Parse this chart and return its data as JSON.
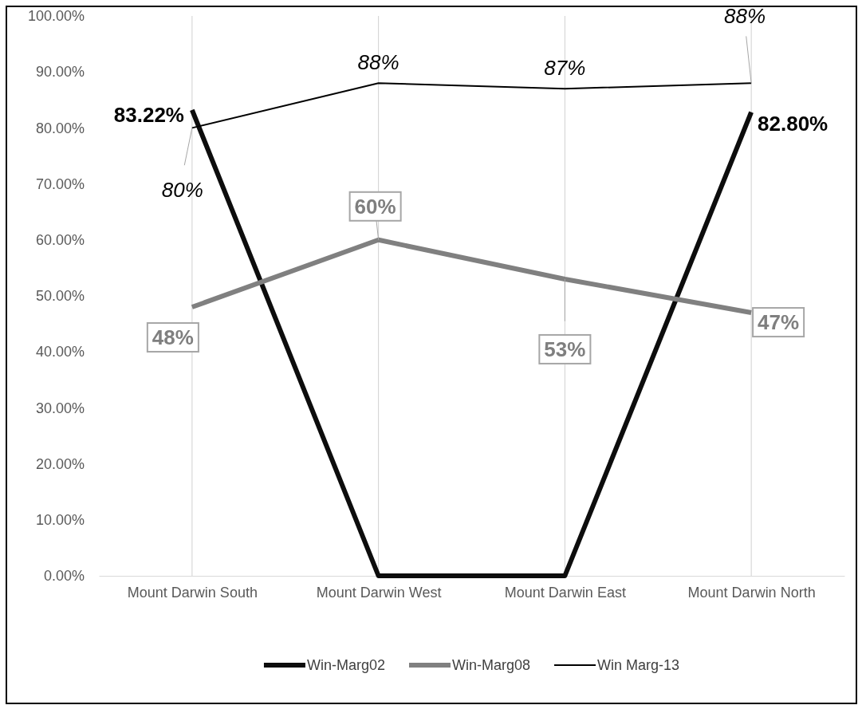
{
  "chart_data": {
    "type": "line",
    "categories": [
      "Mount Darwin South",
      "Mount Darwin West",
      "Mount Darwin East",
      "Mount Darwin North"
    ],
    "series": [
      {
        "name": "Win-Marg02",
        "color": "#0d0d0d",
        "values": [
          83.22,
          0,
          0,
          82.8
        ],
        "value_labels": [
          "83.22%",
          null,
          null,
          "82.80%"
        ]
      },
      {
        "name": "Win-Marg08",
        "color": "#808080",
        "values": [
          48,
          60,
          53,
          47
        ],
        "value_labels": [
          "48%",
          "60%",
          "53%",
          "47%"
        ]
      },
      {
        "name": "Win Marg-13",
        "color": "#000000",
        "values": [
          80,
          88,
          87,
          88
        ],
        "value_labels": [
          "80%",
          "88%",
          "87%",
          "88%"
        ]
      }
    ],
    "ylim": [
      0,
      100
    ],
    "yticks": [
      {
        "value": 0,
        "label": "0.00%"
      },
      {
        "value": 10,
        "label": "10.00%"
      },
      {
        "value": 20,
        "label": "20.00%"
      },
      {
        "value": 30,
        "label": "30.00%"
      },
      {
        "value": 40,
        "label": "40.00%"
      },
      {
        "value": 50,
        "label": "50.00%"
      },
      {
        "value": 60,
        "label": "60.00%"
      },
      {
        "value": 70,
        "label": "70.00%"
      },
      {
        "value": 80,
        "label": "80.00%"
      },
      {
        "value": 90,
        "label": "90.00%"
      },
      {
        "value": 100,
        "label": "100.00%"
      }
    ],
    "grid": "x",
    "legend": "bottom",
    "marker": "none",
    "line_style": "solid"
  }
}
